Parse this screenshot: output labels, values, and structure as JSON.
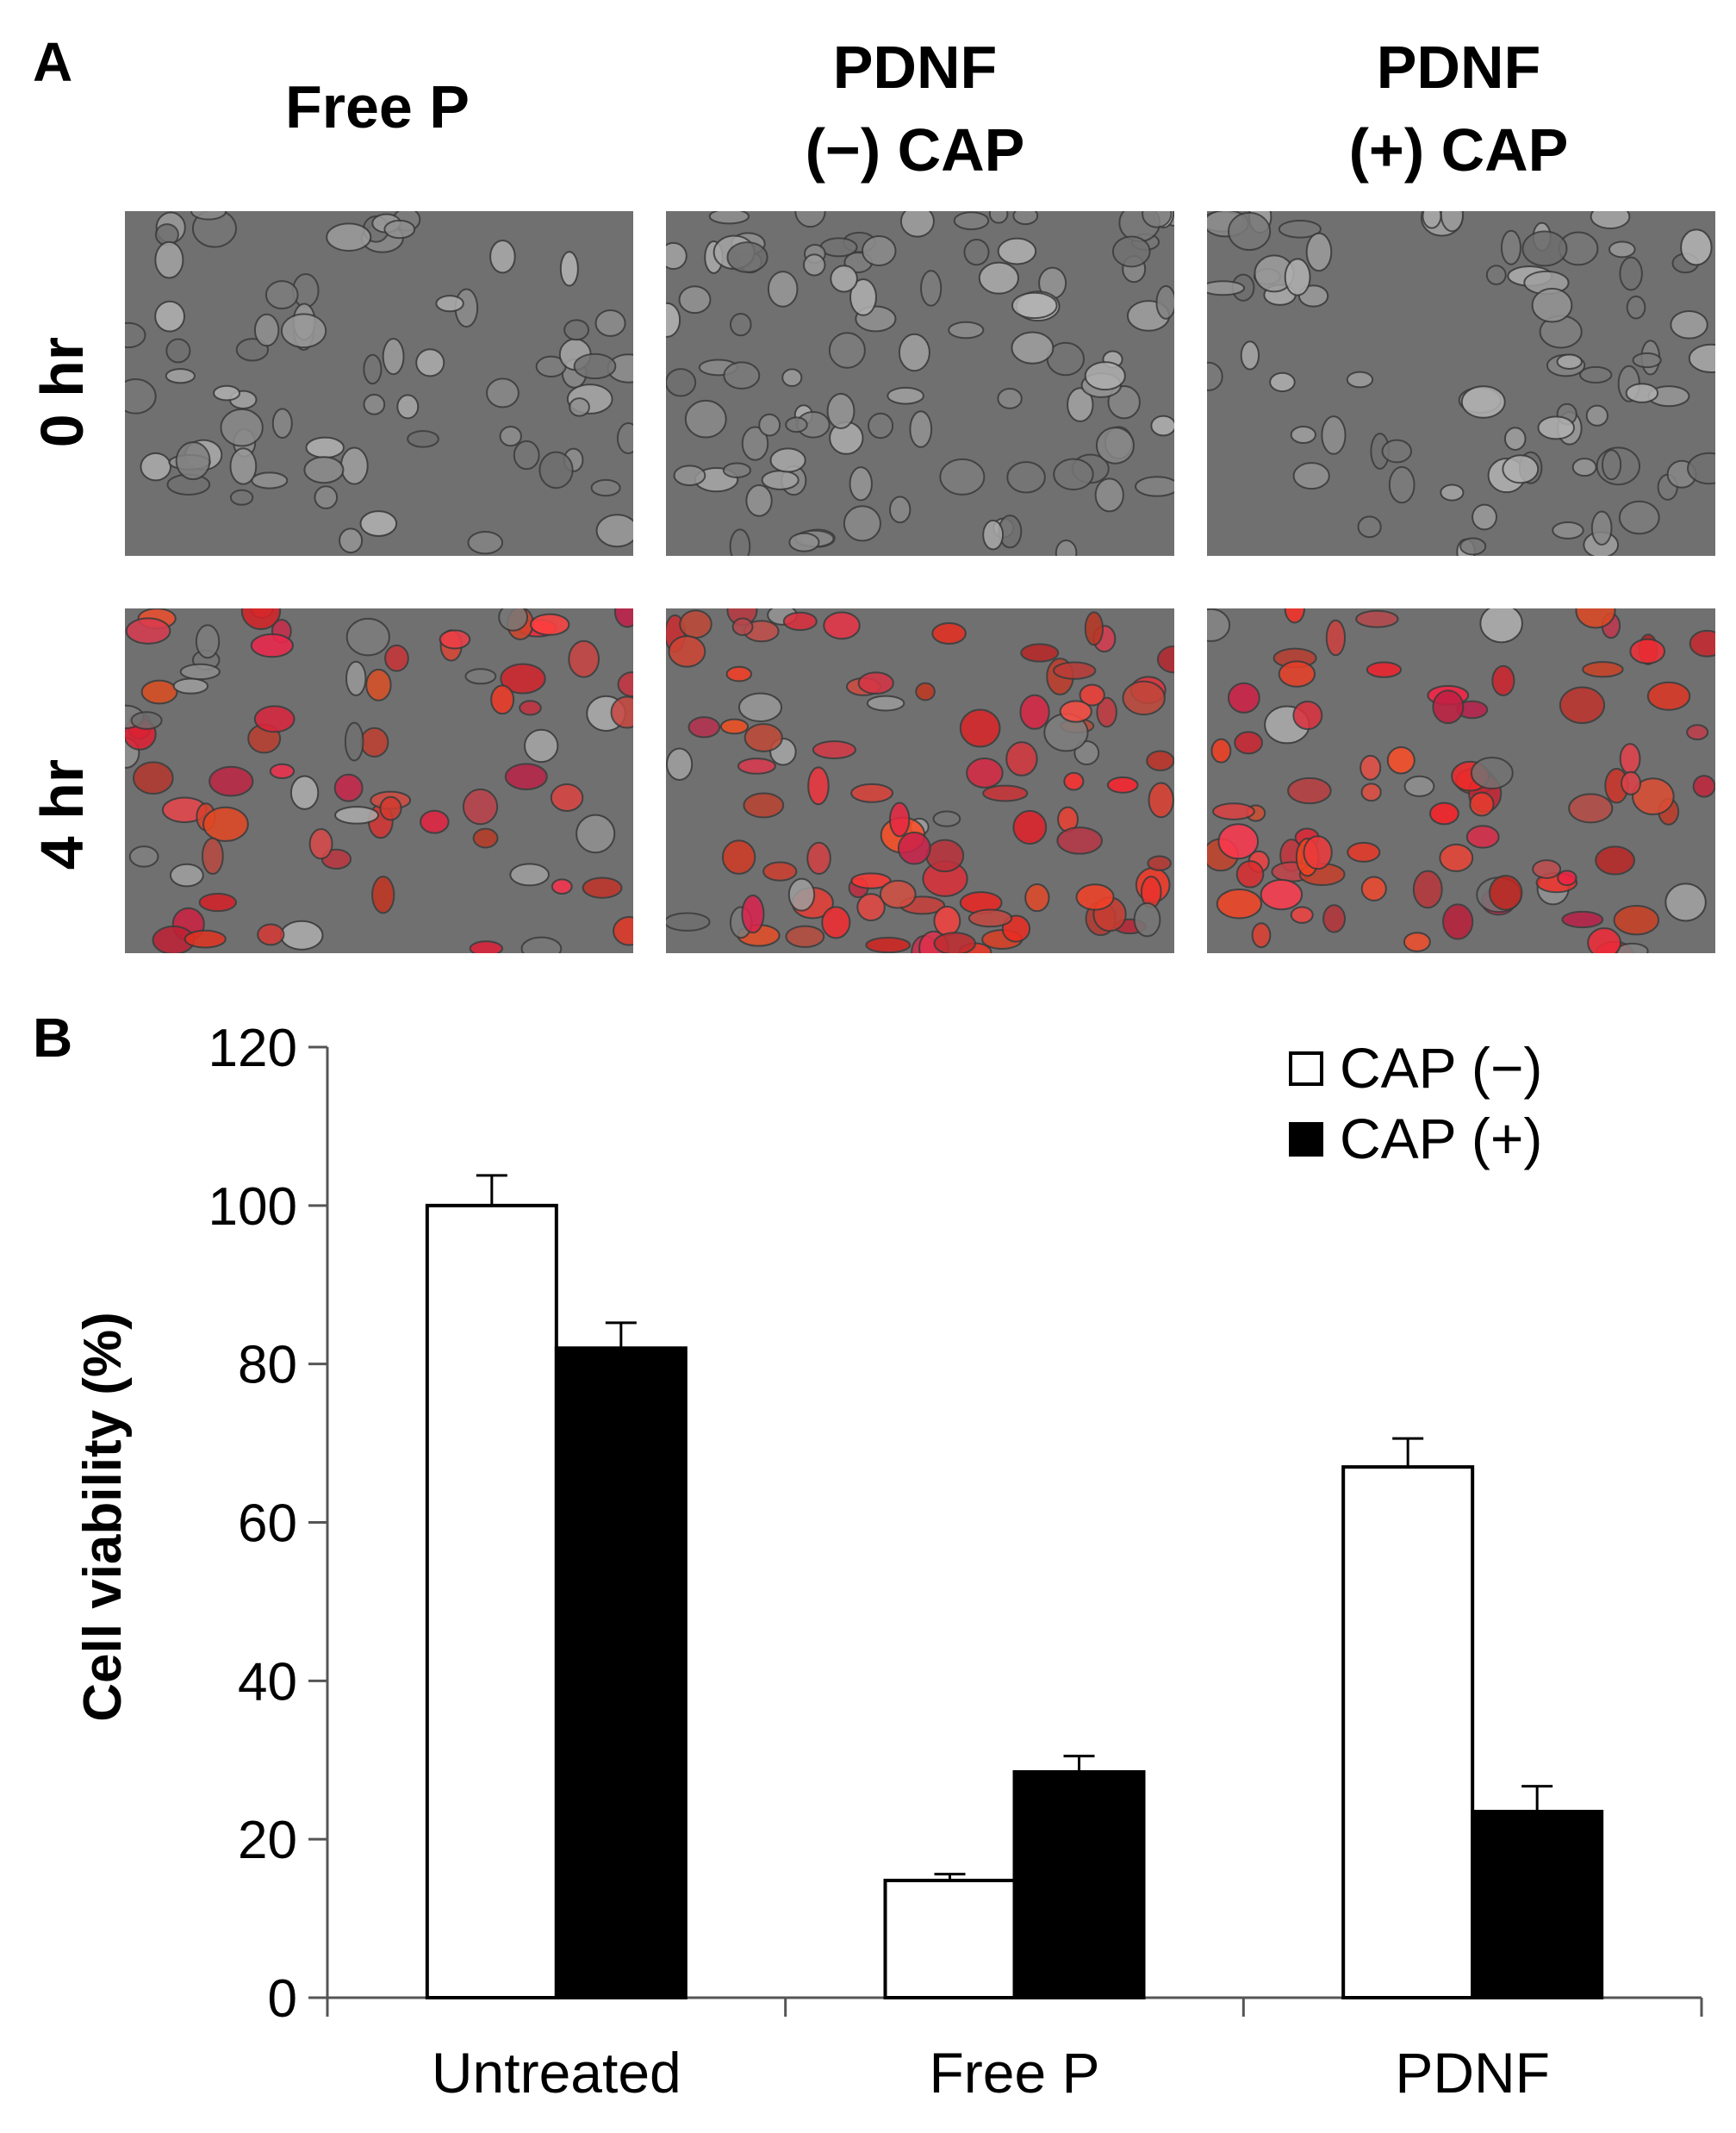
{
  "panel_a": {
    "letter": "A",
    "columns": [
      {
        "line1": "Free P",
        "line2": ""
      },
      {
        "line1": "PDNF",
        "line2": "(−) CAP"
      },
      {
        "line1": "PDNF",
        "line2": "(+) CAP"
      }
    ],
    "rows": [
      "0 hr",
      "4 hr"
    ]
  },
  "panel_b": {
    "letter": "B"
  },
  "chart_data": {
    "type": "bar",
    "title": "",
    "categories": [
      "Untreated",
      "Free P",
      "PDNF"
    ],
    "series": [
      {
        "name": "CAP (−)",
        "color": "#ffffff",
        "values": [
          100,
          14.8,
          67
        ],
        "errors": [
          3.8,
          0.8,
          3.6
        ]
      },
      {
        "name": "CAP (+)",
        "color": "#000000",
        "values": [
          82,
          28.5,
          23.5
        ],
        "errors": [
          3.2,
          2.0,
          3.2
        ]
      }
    ],
    "ylabel": "Cell viability (%)",
    "xlabel": "",
    "ylim": [
      0,
      120
    ],
    "yticks": [
      0,
      20,
      40,
      60,
      80,
      100,
      120
    ],
    "grid": false,
    "legend": "top-right"
  }
}
